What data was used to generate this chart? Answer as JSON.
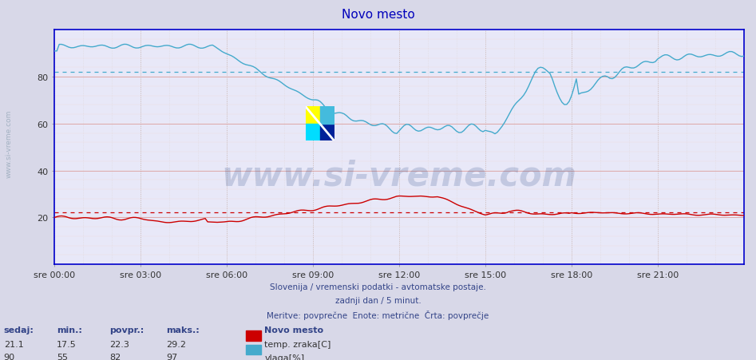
{
  "title": "Novo mesto",
  "bg_color": "#d8d8e8",
  "plot_bg": "#e8e8f8",
  "spine_color": "#0000cc",
  "grid_h_color": "#ddaaaa",
  "grid_v_color": "#ddcccc",
  "temp_color": "#cc0000",
  "humidity_color": "#44aacc",
  "temp_avg": 22.3,
  "humidity_avg": 82.0,
  "ylim": [
    0,
    100
  ],
  "yticks": [
    20,
    40,
    60,
    80
  ],
  "x_labels": [
    "sre 00:00",
    "sre 03:00",
    "sre 06:00",
    "sre 09:00",
    "sre 12:00",
    "sre 15:00",
    "sre 18:00",
    "sre 21:00"
  ],
  "x_ticks_norm": [
    0.0,
    0.125,
    0.25,
    0.375,
    0.5,
    0.625,
    0.75,
    0.875
  ],
  "subtitle_lines": [
    "Slovenija / vremenski podatki - avtomatske postaje.",
    "zadnji dan / 5 minut.",
    "Meritve: povprečne  Enote: metrične  Črta: povprečje"
  ],
  "legend_title": "Novo mesto",
  "legend_entries": [
    {
      "label": "temp. zraka[C]",
      "color": "#cc0000"
    },
    {
      "label": "vlaga[%]",
      "color": "#44aacc"
    }
  ],
  "stat_labels": [
    "sedaj:",
    "min.:",
    "povpr.:",
    "maks.:"
  ],
  "temp_stats": [
    21.1,
    17.5,
    22.3,
    29.2
  ],
  "humid_stats": [
    90,
    55,
    82,
    97
  ],
  "watermark": "www.si-vreme.com",
  "side_text": "www.si-vreme.com",
  "title_color": "#0000bb",
  "label_color": "#334488",
  "stat_header_color": "#334488",
  "text_color": "#333333"
}
